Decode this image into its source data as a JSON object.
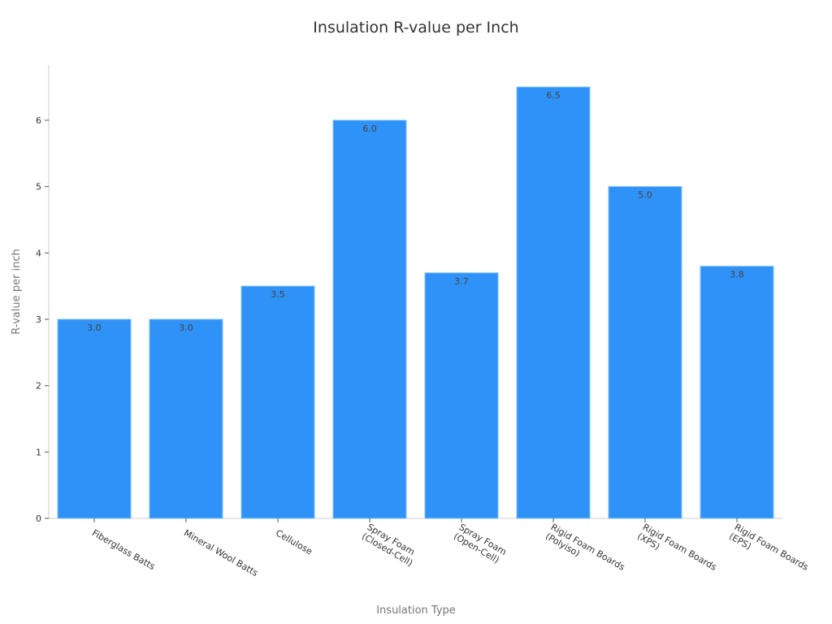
{
  "chart_data": {
    "type": "bar",
    "title": "Insulation R-value per Inch",
    "xlabel": "Insulation Type",
    "ylabel": "R-value per inch",
    "categories": [
      "Fiberglass Batts",
      "Mineral Wool Batts",
      "Cellulose",
      "Spray Foam\n(Closed-Cell)",
      "Spray Foam\n(Open-Cell)",
      "Rigid Foam Boards\n(Polyiso)",
      "Rigid Foam Boards\n(XPS)",
      "Rigid Foam Boards\n(EPS)"
    ],
    "values": [
      3.0,
      3.0,
      3.5,
      6.0,
      3.7,
      6.5,
      5.0,
      3.8
    ],
    "value_labels": [
      "3.0",
      "3.0",
      "3.5",
      "6.0",
      "3.7",
      "6.5",
      "5.0",
      "3.8"
    ],
    "yticks": [
      0,
      1,
      2,
      3,
      4,
      5,
      6
    ],
    "ylim": [
      0,
      6.83
    ],
    "grid": false,
    "legend": null,
    "bar_color": "#2f92f7"
  }
}
